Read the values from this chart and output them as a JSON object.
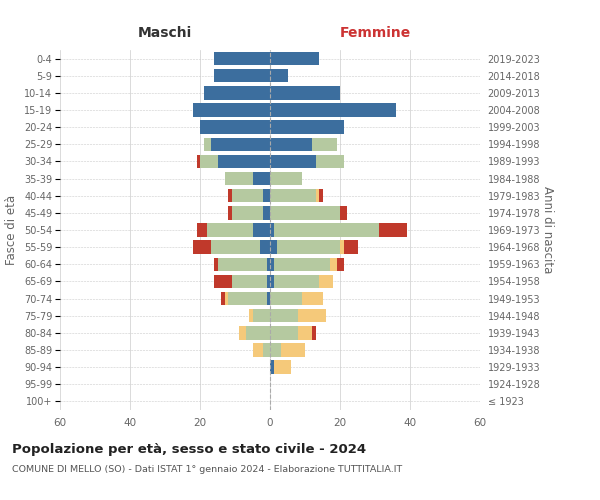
{
  "age_groups": [
    "100+",
    "95-99",
    "90-94",
    "85-89",
    "80-84",
    "75-79",
    "70-74",
    "65-69",
    "60-64",
    "55-59",
    "50-54",
    "45-49",
    "40-44",
    "35-39",
    "30-34",
    "25-29",
    "20-24",
    "15-19",
    "10-14",
    "5-9",
    "0-4"
  ],
  "birth_years": [
    "≤ 1923",
    "1924-1928",
    "1929-1933",
    "1934-1938",
    "1939-1943",
    "1944-1948",
    "1949-1953",
    "1954-1958",
    "1959-1963",
    "1964-1968",
    "1969-1973",
    "1974-1978",
    "1979-1983",
    "1984-1988",
    "1989-1993",
    "1994-1998",
    "1999-2003",
    "2004-2008",
    "2009-2013",
    "2014-2018",
    "2019-2023"
  ],
  "colors": {
    "celibi": "#3c6e9e",
    "coniugati": "#b5c9a0",
    "vedovi": "#f5c97a",
    "divorziati": "#c0392b"
  },
  "maschi": {
    "celibi": [
      0,
      0,
      0,
      0,
      0,
      0,
      1,
      1,
      1,
      3,
      5,
      2,
      2,
      5,
      15,
      17,
      20,
      22,
      19,
      16,
      16
    ],
    "coniugati": [
      0,
      0,
      0,
      2,
      7,
      5,
      11,
      10,
      14,
      14,
      13,
      9,
      9,
      8,
      5,
      2,
      0,
      0,
      0,
      0,
      0
    ],
    "vedovi": [
      0,
      0,
      0,
      3,
      2,
      1,
      1,
      0,
      0,
      0,
      0,
      0,
      0,
      0,
      0,
      0,
      0,
      0,
      0,
      0,
      0
    ],
    "divorziati": [
      0,
      0,
      0,
      0,
      0,
      0,
      1,
      5,
      1,
      5,
      3,
      1,
      1,
      0,
      1,
      0,
      0,
      0,
      0,
      0,
      0
    ]
  },
  "femmine": {
    "celibi": [
      0,
      0,
      1,
      0,
      0,
      0,
      0,
      1,
      1,
      2,
      1,
      0,
      0,
      0,
      13,
      12,
      21,
      36,
      20,
      5,
      14
    ],
    "coniugati": [
      0,
      0,
      0,
      3,
      8,
      8,
      9,
      13,
      16,
      18,
      30,
      20,
      13,
      9,
      8,
      7,
      0,
      0,
      0,
      0,
      0
    ],
    "vedovi": [
      0,
      0,
      5,
      7,
      4,
      8,
      6,
      4,
      2,
      1,
      0,
      0,
      1,
      0,
      0,
      0,
      0,
      0,
      0,
      0,
      0
    ],
    "divorziati": [
      0,
      0,
      0,
      0,
      1,
      0,
      0,
      0,
      2,
      4,
      8,
      2,
      1,
      0,
      0,
      0,
      0,
      0,
      0,
      0,
      0
    ]
  },
  "title_main": "Popolazione per età, sesso e stato civile - 2024",
  "title_sub": "COMUNE DI MELLO (SO) - Dati ISTAT 1° gennaio 2024 - Elaborazione TUTTITALIA.IT",
  "xlabel_left": "Maschi",
  "xlabel_right": "Femmine",
  "ylabel_left": "Fasce di età",
  "ylabel_right": "Anni di nascita",
  "xlim": 60,
  "background_color": "#ffffff",
  "grid_color": "#cccccc"
}
